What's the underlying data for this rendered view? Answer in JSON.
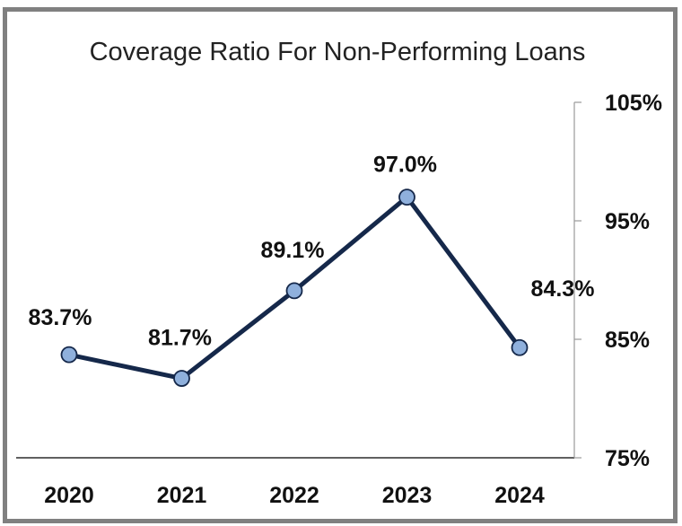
{
  "chart_data": {
    "type": "line",
    "title": "Coverage Ratio For Non-Performing Loans",
    "xlabel": "",
    "ylabel": "",
    "categories": [
      "2020",
      "2021",
      "2022",
      "2023",
      "2024"
    ],
    "series": [
      {
        "values": [
          83.7,
          81.7,
          89.1,
          97.0,
          84.3
        ]
      }
    ],
    "data_labels": [
      "83.7%",
      "81.7%",
      "89.1%",
      "97.0%",
      "84.3%"
    ],
    "y_ticks": [
      75,
      85,
      95,
      105
    ],
    "y_tick_labels": [
      "75%",
      "85%",
      "95%",
      "105%"
    ],
    "ylim": [
      75,
      105
    ],
    "y_axis_side": "right",
    "grid": false,
    "legend": "none",
    "colors": {
      "line": "#15284a",
      "marker_fill": "#8fb0dc",
      "marker_stroke": "#15284a",
      "frame": "#808080"
    }
  }
}
